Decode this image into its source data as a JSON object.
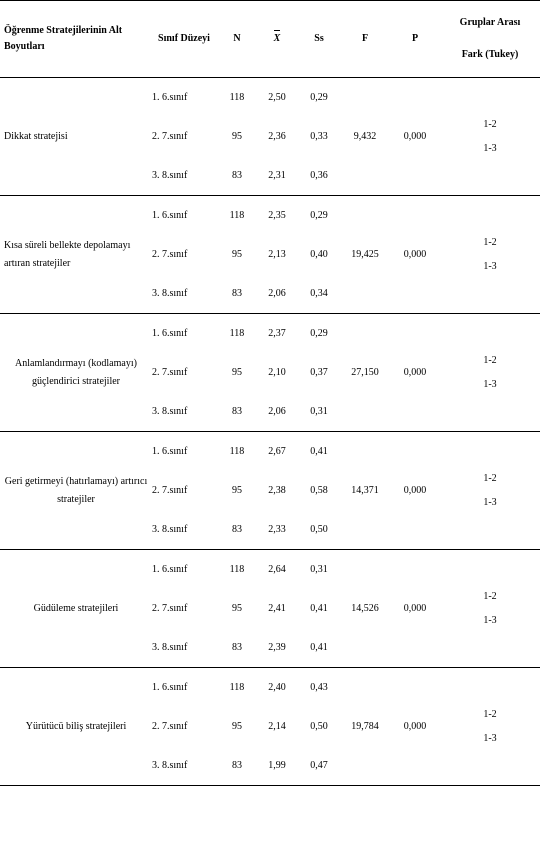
{
  "headers": {
    "dimension": "Öğrenme Stratejilerinin Alt Boyutları",
    "level": "Sınıf Düzeyi",
    "n": "N",
    "mean": "X",
    "ss": "Ss",
    "f": "F",
    "p": "P",
    "tukey_l1": "Gruplar Arası",
    "tukey_l2": "Fark (Tukey)"
  },
  "blocks": [
    {
      "dimension": "Dikkat stratejisi",
      "dim_align": "left",
      "rows": [
        {
          "level": "1. 6.sınıf",
          "n": "118",
          "mean": "2,50",
          "ss": "0,29"
        },
        {
          "level": "2. 7.sınıf",
          "n": "95",
          "mean": "2,36",
          "ss": "0,33"
        },
        {
          "level": "3. 8.sınıf",
          "n": "83",
          "mean": "2,31",
          "ss": "0,36"
        }
      ],
      "f": "9,432",
      "p": "0,000",
      "tukey1": "1-2",
      "tukey2": "1-3"
    },
    {
      "dimension": "Kısa süreli bellekte depolamayı artıran stratejiler",
      "dim_align": "left",
      "rows": [
        {
          "level": "1. 6.sınıf",
          "n": "118",
          "mean": "2,35",
          "ss": "0,29"
        },
        {
          "level": "2. 7.sınıf",
          "n": "95",
          "mean": "2,13",
          "ss": "0,40"
        },
        {
          "level": "3. 8.sınıf",
          "n": "83",
          "mean": "2,06",
          "ss": "0,34"
        }
      ],
      "f": "19,425",
      "p": "0,000",
      "tukey1": "1-2",
      "tukey2": "1-3"
    },
    {
      "dimension": "Anlamlandırmayı (kodlamayı) güçlendirici stratejiler",
      "dim_align": "center",
      "rows": [
        {
          "level": "1. 6.sınıf",
          "n": "118",
          "mean": "2,37",
          "ss": "0,29"
        },
        {
          "level": "2. 7.sınıf",
          "n": "95",
          "mean": "2,10",
          "ss": "0,37"
        },
        {
          "level": "3. 8.sınıf",
          "n": "83",
          "mean": "2,06",
          "ss": "0,31"
        }
      ],
      "f": "27,150",
      "p": "0,000",
      "tukey1": "1-2",
      "tukey2": "1-3"
    },
    {
      "dimension": "Geri getirmeyi (hatırlamayı) artırıcı stratejiler",
      "dim_align": "center",
      "rows": [
        {
          "level": "1. 6.sınıf",
          "n": "118",
          "mean": "2,67",
          "ss": "0,41"
        },
        {
          "level": "2. 7.sınıf",
          "n": "95",
          "mean": "2,38",
          "ss": "0,58"
        },
        {
          "level": "3. 8.sınıf",
          "n": "83",
          "mean": "2,33",
          "ss": "0,50"
        }
      ],
      "f": "14,371",
      "p": "0,000",
      "tukey1": "1-2",
      "tukey2": "1-3"
    },
    {
      "dimension": "Güdüleme stratejileri",
      "dim_align": "center",
      "rows": [
        {
          "level": "1. 6.sınıf",
          "n": "118",
          "mean": "2,64",
          "ss": "0,31"
        },
        {
          "level": "2. 7.sınıf",
          "n": "95",
          "mean": "2,41",
          "ss": "0,41"
        },
        {
          "level": "3. 8.sınıf",
          "n": "83",
          "mean": "2,39",
          "ss": "0,41"
        }
      ],
      "f": "14,526",
      "p": "0,000",
      "tukey1": "1-2",
      "tukey2": "1-3"
    },
    {
      "dimension": "Yürütücü biliş stratejileri",
      "dim_align": "center",
      "rows": [
        {
          "level": "1. 6.sınıf",
          "n": "118",
          "mean": "2,40",
          "ss": "0,43"
        },
        {
          "level": "2. 7.sınıf",
          "n": "95",
          "mean": "2,14",
          "ss": "0,50"
        },
        {
          "level": "3. 8.sınıf",
          "n": "83",
          "mean": "1,99",
          "ss": "0,47"
        }
      ],
      "f": "19,784",
      "p": "0,000",
      "tukey1": "1-2",
      "tukey2": "1-3"
    }
  ]
}
